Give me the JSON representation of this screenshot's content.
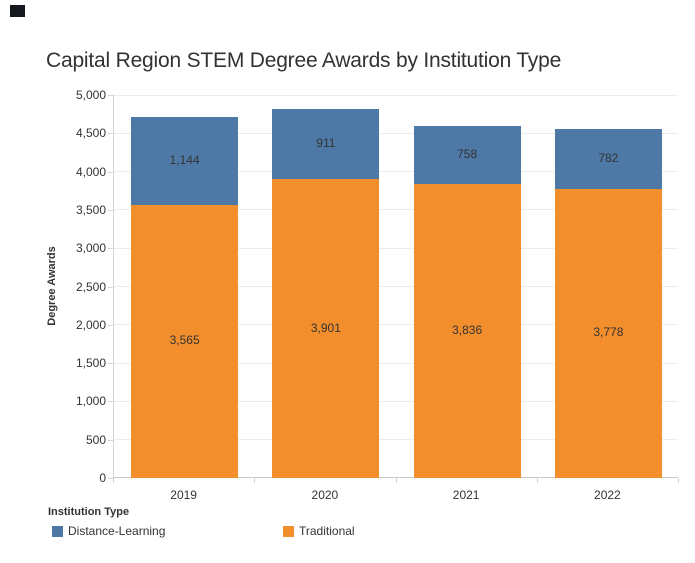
{
  "title": "Capital Region STEM Degree Awards by Institution Type",
  "colors": {
    "traditional_orange": "#f28e2b",
    "distance_blue": "#4e79a7",
    "text": "#333333",
    "gridline": "#ececec",
    "axis": "#c9c9c9",
    "corner_artifact": "#15181c"
  },
  "legend": {
    "title": "Institution Type",
    "items": [
      {
        "label": "Distance-Learning",
        "color": "#4e79a7"
      },
      {
        "label": "Traditional",
        "color": "#f28e2b"
      }
    ]
  },
  "chart_data": {
    "type": "bar",
    "stacked": true,
    "title": "Capital Region STEM Degree Awards by Institution Type",
    "xlabel": "",
    "ylabel": "Degree Awards",
    "categories": [
      "2019",
      "2020",
      "2021",
      "2022"
    ],
    "series": [
      {
        "name": "Traditional",
        "color": "#f28e2b",
        "values": [
          3565,
          3901,
          3836,
          3778
        ]
      },
      {
        "name": "Distance-Learning",
        "color": "#4e79a7",
        "values": [
          1144,
          911,
          758,
          782
        ]
      }
    ],
    "totals": [
      4709,
      4812,
      4594,
      4560
    ],
    "ylim": [
      0,
      5000
    ],
    "ytick_step": 500,
    "ytick_labels": [
      "0",
      "500",
      "1,000",
      "1,500",
      "2,000",
      "2,500",
      "3,000",
      "3,500",
      "4,000",
      "4,500",
      "5,000"
    ],
    "grid": true,
    "bar_labels": true,
    "legend_title": "Institution Type",
    "legend_position": "bottom-left"
  }
}
